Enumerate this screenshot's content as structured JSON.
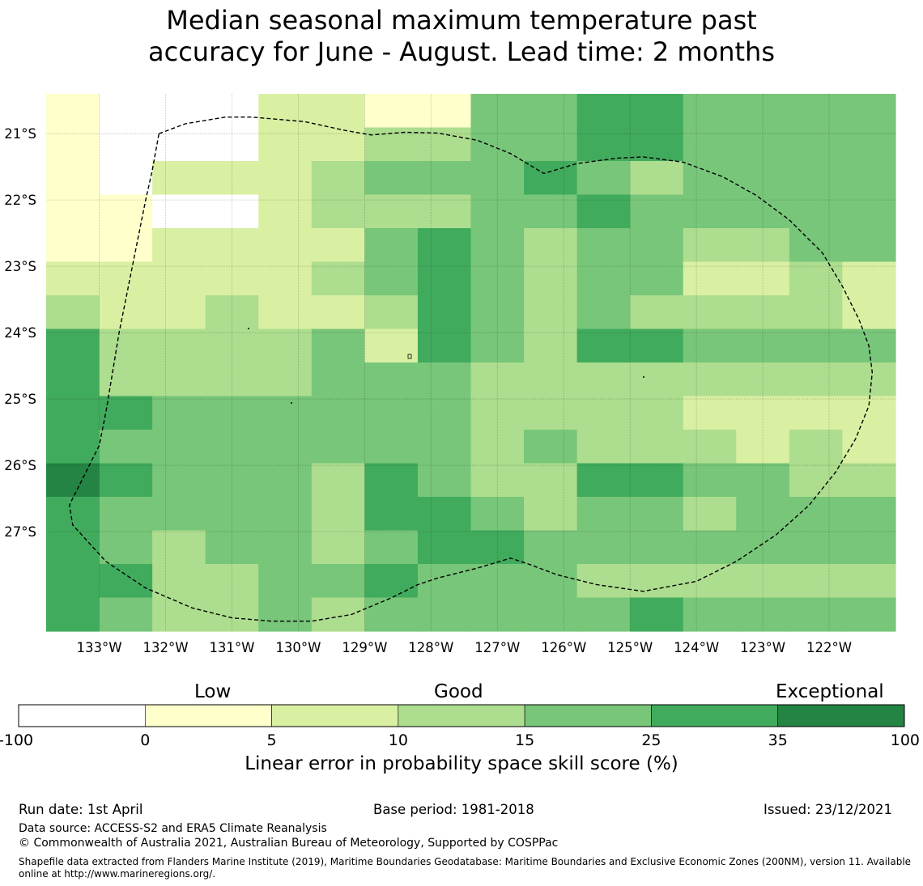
{
  "title_line1": "Median seasonal maximum temperature past",
  "title_line2": "accuracy for June - August. Lead time: 2 months",
  "map": {
    "lon_min": -133.8,
    "lon_max": -121.0,
    "lat_min": -28.5,
    "lat_max": -20.4,
    "lon_ticks": [
      {
        "value": -133,
        "label": "133°W"
      },
      {
        "value": -132,
        "label": "132°W"
      },
      {
        "value": -131,
        "label": "131°W"
      },
      {
        "value": -130,
        "label": "130°W"
      },
      {
        "value": -129,
        "label": "129°W"
      },
      {
        "value": -128,
        "label": "128°W"
      },
      {
        "value": -127,
        "label": "127°W"
      },
      {
        "value": -126,
        "label": "126°W"
      },
      {
        "value": -125,
        "label": "125°W"
      },
      {
        "value": -124,
        "label": "124°W"
      },
      {
        "value": -123,
        "label": "123°W"
      },
      {
        "value": -122,
        "label": "122°W"
      }
    ],
    "lat_ticks": [
      {
        "value": -21,
        "label": "21°S"
      },
      {
        "value": -22,
        "label": "22°S"
      },
      {
        "value": -23,
        "label": "23°S"
      },
      {
        "value": -24,
        "label": "24°S"
      },
      {
        "value": -25,
        "label": "25°S"
      },
      {
        "value": -26,
        "label": "26°S"
      },
      {
        "value": -27,
        "label": "27°S"
      }
    ],
    "grid_rows": [
      "1000221144554444",
      "1000223344554444",
      "1022234445434444",
      "1100233344544444",
      "1122224543443344",
      "2222234543442232",
      "3223223543433332",
      "5333342543554444",
      "5333344433333333",
      "5544444433332222",
      "5444444434333232",
      "6544435433554433",
      "5444435543443444",
      "5434434554444444",
      "5533445444333333",
      "5433434444454444"
    ],
    "boundary_lonlat": [
      [
        -132.1,
        -21.0
      ],
      [
        -131.7,
        -20.85
      ],
      [
        -131.1,
        -20.75
      ],
      [
        -130.7,
        -20.75
      ],
      [
        -129.9,
        -20.82
      ],
      [
        -129.3,
        -20.95
      ],
      [
        -128.9,
        -21.02
      ],
      [
        -128.4,
        -20.98
      ],
      [
        -127.9,
        -20.99
      ],
      [
        -127.3,
        -21.1
      ],
      [
        -126.8,
        -21.3
      ],
      [
        -126.3,
        -21.6
      ],
      [
        -125.8,
        -21.45
      ],
      [
        -125.2,
        -21.37
      ],
      [
        -124.8,
        -21.35
      ],
      [
        -124.2,
        -21.43
      ],
      [
        -123.6,
        -21.65
      ],
      [
        -123.1,
        -21.93
      ],
      [
        -122.6,
        -22.3
      ],
      [
        -122.1,
        -22.8
      ],
      [
        -121.8,
        -23.3
      ],
      [
        -121.55,
        -23.8
      ],
      [
        -121.4,
        -24.2
      ],
      [
        -121.35,
        -24.6
      ],
      [
        -121.4,
        -25.1
      ],
      [
        -121.6,
        -25.6
      ],
      [
        -121.9,
        -26.1
      ],
      [
        -122.3,
        -26.6
      ],
      [
        -122.8,
        -27.05
      ],
      [
        -123.4,
        -27.45
      ],
      [
        -124.0,
        -27.75
      ],
      [
        -124.8,
        -27.9
      ],
      [
        -125.5,
        -27.8
      ],
      [
        -126.1,
        -27.65
      ],
      [
        -126.5,
        -27.5
      ],
      [
        -126.8,
        -27.4
      ],
      [
        -127.3,
        -27.55
      ],
      [
        -127.9,
        -27.7
      ],
      [
        -128.2,
        -27.8
      ],
      [
        -128.6,
        -28.0
      ],
      [
        -129.2,
        -28.25
      ],
      [
        -129.8,
        -28.35
      ],
      [
        -130.4,
        -28.35
      ],
      [
        -131.0,
        -28.3
      ],
      [
        -131.6,
        -28.15
      ],
      [
        -132.3,
        -27.85
      ],
      [
        -132.9,
        -27.45
      ],
      [
        -133.4,
        -26.9
      ],
      [
        -133.45,
        -26.6
      ],
      [
        -133.2,
        -26.1
      ],
      [
        -133.0,
        -25.7
      ],
      [
        -132.9,
        -25.2
      ],
      [
        -132.8,
        -24.6
      ],
      [
        -132.7,
        -24.0
      ],
      [
        -132.6,
        -23.5
      ],
      [
        -132.5,
        -23.0
      ],
      [
        -132.4,
        -22.5
      ],
      [
        -132.3,
        -22.0
      ],
      [
        -132.2,
        -21.55
      ],
      [
        -132.1,
        -21.0
      ]
    ]
  },
  "colorbar": {
    "bins": [
      {
        "from": "-100",
        "to": "0",
        "color": "#ffffff"
      },
      {
        "from": "0",
        "to": "5",
        "color": "#ffffcc"
      },
      {
        "from": "5",
        "to": "10",
        "color": "#d9f0a3"
      },
      {
        "from": "10",
        "to": "15",
        "color": "#addd8e"
      },
      {
        "from": "15",
        "to": "25",
        "color": "#78c679"
      },
      {
        "from": "25",
        "to": "35",
        "color": "#41ab5d"
      },
      {
        "from": "35",
        "to": "100",
        "color": "#238443"
      }
    ],
    "tick_labels": [
      "-100",
      "0",
      "5",
      "10",
      "15",
      "25",
      "35",
      "100"
    ],
    "category_low": "Low",
    "category_good": "Good",
    "category_exceptional": "Exceptional",
    "title": "Linear error in probability space skill score (%)"
  },
  "footer": {
    "run_date": "Run date: 1st April",
    "base_period": "Base period: 1981-2018",
    "issued": "Issued: 23/12/2021",
    "data_source": "Data source: ACCESS-S2 and ERA5 Climate Reanalysis",
    "copyright": "© Commonwealth of Australia 2021, Australian Bureau of Meteorology, Supported by COSPPac",
    "shapefile": "Shapefile data extracted from Flanders Marine Institute (2019), Maritime Boundaries Geodatabase: Maritime Boundaries and Exclusive Economic Zones (200NM), version 11. Available online at http://www.marineregions.org/."
  }
}
